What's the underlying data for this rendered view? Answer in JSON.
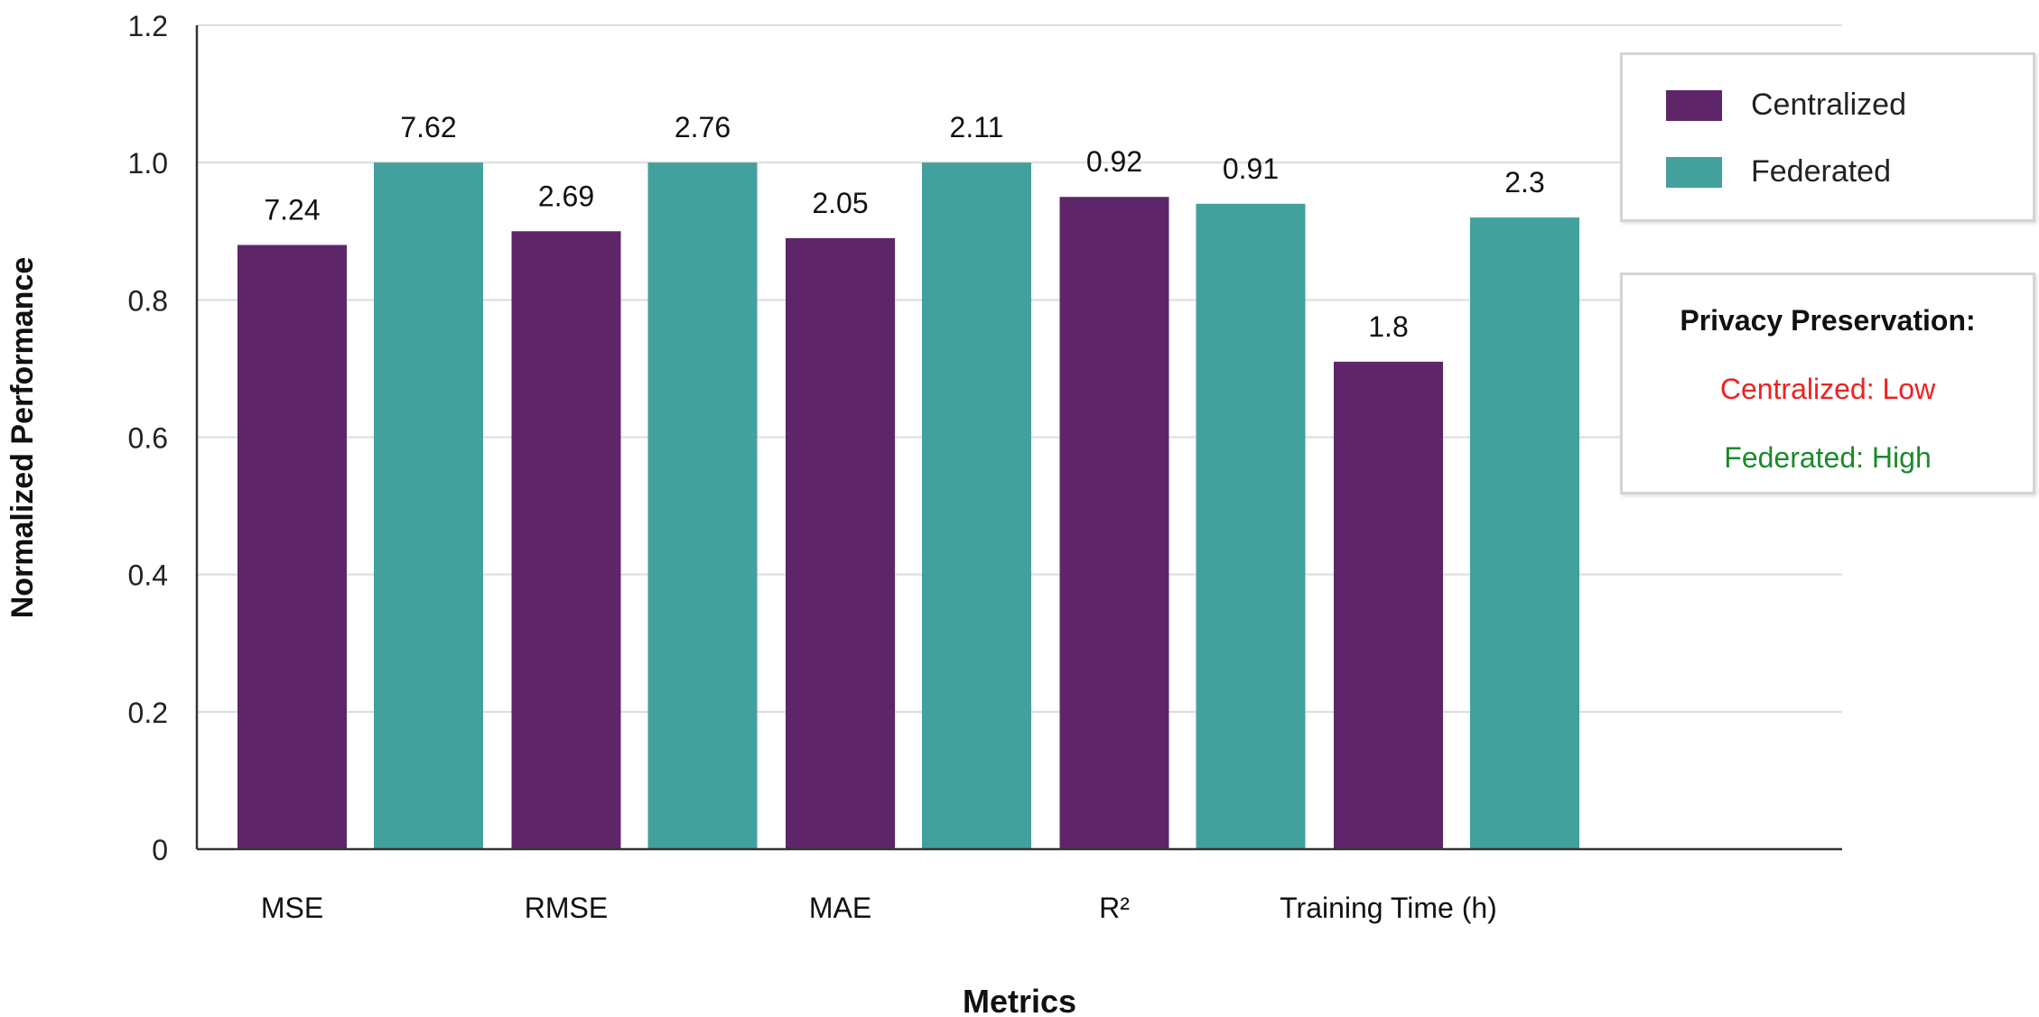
{
  "chart_data": {
    "type": "bar",
    "title": "",
    "xlabel": "Metrics",
    "ylabel": "Normalized Performance",
    "ylim": [
      0,
      1.2
    ],
    "yticks": [
      "0",
      "0.2",
      "0.4",
      "0.6",
      "0.8",
      "1.0",
      "1.2"
    ],
    "grid": true,
    "categories": [
      "MSE",
      "RMSE",
      "MAE",
      "R²",
      "Training Time (h)"
    ],
    "series": [
      {
        "name": "Centralized",
        "color": "#5e2669",
        "values": [
          0.88,
          0.9,
          0.89,
          0.95,
          0.71
        ],
        "labels": [
          "7.24",
          "2.69",
          "2.05",
          "0.92",
          "1.8"
        ]
      },
      {
        "name": "Federated",
        "color": "#42a09d",
        "values": [
          1.0,
          1.0,
          1.0,
          0.94,
          0.92
        ],
        "labels": [
          "7.62",
          "2.76",
          "2.11",
          "0.91",
          "2.3"
        ]
      }
    ],
    "legend_position": "top-right"
  },
  "legend": {
    "items": [
      {
        "label": "Centralized",
        "color": "#5e2669"
      },
      {
        "label": "Federated",
        "color": "#42a09d"
      }
    ]
  },
  "privacy": {
    "title": "Privacy Preservation:",
    "centralized": {
      "text": "Centralized: Low",
      "color": "#ee2222"
    },
    "federated": {
      "text": "Federated: High",
      "color": "#1b8a2a"
    }
  }
}
